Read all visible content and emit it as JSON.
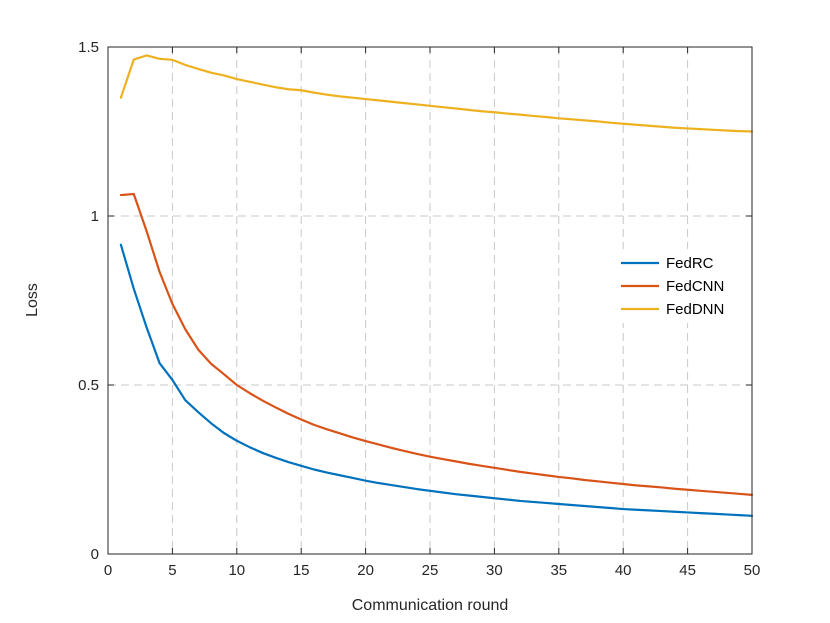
{
  "chart_data": {
    "type": "line",
    "xlabel": "Communication round",
    "ylabel": "Loss",
    "xlim": [
      0,
      50
    ],
    "ylim": [
      0,
      1.5
    ],
    "xticks": [
      0,
      5,
      10,
      15,
      20,
      25,
      30,
      35,
      40,
      45,
      50
    ],
    "yticks": [
      0,
      0.5,
      1,
      1.5
    ],
    "xtick_labels": [
      "0",
      "5",
      "10",
      "15",
      "20",
      "25",
      "30",
      "35",
      "40",
      "45",
      "50"
    ],
    "ytick_labels": [
      "0",
      "0.5",
      "1",
      "1.5"
    ],
    "grid": true,
    "legend_position": "center-right",
    "x": [
      1,
      2,
      3,
      4,
      5,
      6,
      7,
      8,
      9,
      10,
      11,
      12,
      13,
      14,
      15,
      16,
      17,
      18,
      19,
      20,
      21,
      22,
      23,
      24,
      25,
      26,
      27,
      28,
      29,
      30,
      31,
      32,
      33,
      34,
      35,
      36,
      37,
      38,
      39,
      40,
      41,
      42,
      43,
      44,
      45,
      46,
      47,
      48,
      49,
      50
    ],
    "series": [
      {
        "name": "FedRC",
        "color": "#0072BD",
        "values": [
          0.915,
          0.785,
          0.67,
          0.565,
          0.515,
          0.455,
          0.42,
          0.387,
          0.358,
          0.335,
          0.316,
          0.299,
          0.285,
          0.272,
          0.261,
          0.25,
          0.241,
          0.233,
          0.225,
          0.217,
          0.21,
          0.204,
          0.198,
          0.192,
          0.187,
          0.182,
          0.177,
          0.173,
          0.169,
          0.165,
          0.161,
          0.157,
          0.154,
          0.151,
          0.148,
          0.145,
          0.142,
          0.139,
          0.136,
          0.133,
          0.131,
          0.129,
          0.127,
          0.125,
          0.123,
          0.121,
          0.119,
          0.117,
          0.115,
          0.113
        ]
      },
      {
        "name": "FedCNN",
        "color": "#D95319",
        "values": [
          1.062,
          1.065,
          0.955,
          0.835,
          0.74,
          0.665,
          0.605,
          0.563,
          0.532,
          0.5,
          0.476,
          0.454,
          0.434,
          0.415,
          0.398,
          0.382,
          0.369,
          0.357,
          0.345,
          0.334,
          0.324,
          0.314,
          0.305,
          0.296,
          0.288,
          0.281,
          0.274,
          0.267,
          0.261,
          0.255,
          0.249,
          0.243,
          0.238,
          0.233,
          0.228,
          0.224,
          0.219,
          0.215,
          0.211,
          0.207,
          0.203,
          0.2,
          0.197,
          0.193,
          0.19,
          0.187,
          0.184,
          0.181,
          0.178,
          0.175
        ]
      },
      {
        "name": "FedDNN",
        "color": "#EDB120",
        "values": [
          1.35,
          1.463,
          1.475,
          1.465,
          1.462,
          1.447,
          1.435,
          1.424,
          1.416,
          1.405,
          1.397,
          1.389,
          1.381,
          1.375,
          1.372,
          1.365,
          1.359,
          1.354,
          1.35,
          1.346,
          1.342,
          1.338,
          1.334,
          1.33,
          1.326,
          1.322,
          1.318,
          1.314,
          1.31,
          1.307,
          1.303,
          1.3,
          1.296,
          1.293,
          1.289,
          1.286,
          1.283,
          1.28,
          1.276,
          1.273,
          1.27,
          1.267,
          1.264,
          1.261,
          1.259,
          1.257,
          1.255,
          1.253,
          1.251,
          1.25
        ]
      }
    ]
  }
}
